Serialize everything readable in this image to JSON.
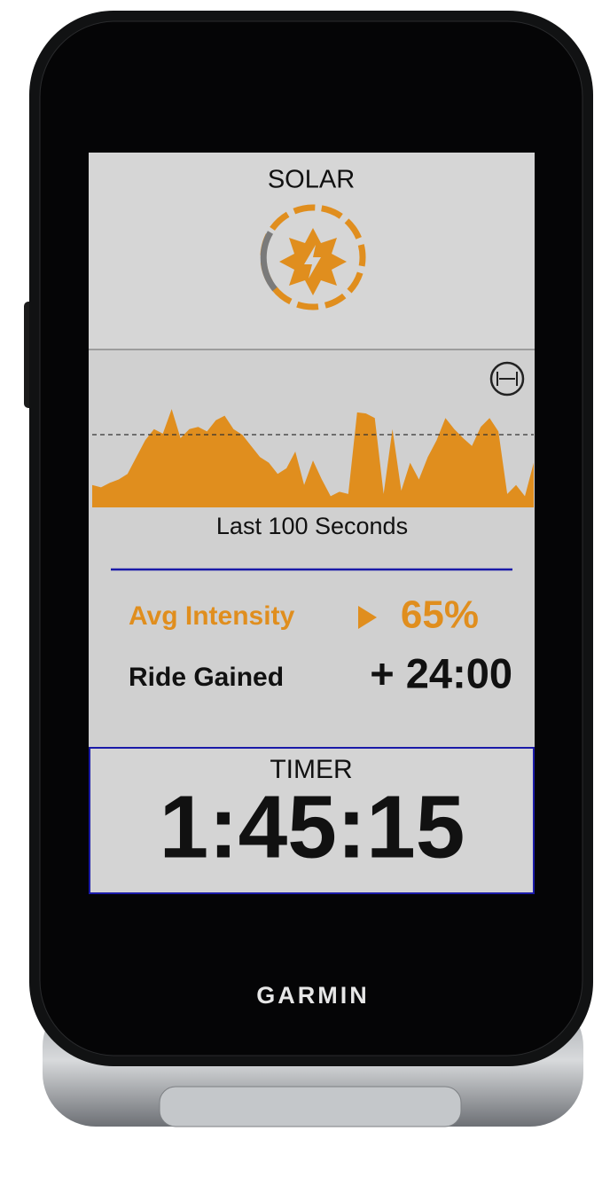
{
  "screen": {
    "title": "SOLAR",
    "chart_caption": "Last 100 Seconds",
    "metrics": [
      {
        "label": "Avg Intensity",
        "value": "65%"
      },
      {
        "label": "Ride Gained",
        "value": "+ 24:00"
      }
    ],
    "timer": {
      "label": "TIMER",
      "value": "1:45:15"
    }
  },
  "brand": "GARMIN",
  "chart_data": {
    "type": "area",
    "color": "#e08e1e",
    "ylim": [
      0,
      100
    ],
    "values": [
      20,
      18,
      22,
      25,
      30,
      45,
      60,
      70,
      66,
      88,
      62,
      70,
      72,
      68,
      78,
      82,
      70,
      65,
      55,
      45,
      40,
      30,
      35,
      50,
      20,
      42,
      25,
      10,
      14,
      12,
      85,
      84,
      80,
      12,
      70,
      15,
      40,
      25,
      45,
      60,
      80,
      70,
      62,
      55,
      72,
      80,
      68,
      12,
      20,
      10,
      40
    ]
  }
}
